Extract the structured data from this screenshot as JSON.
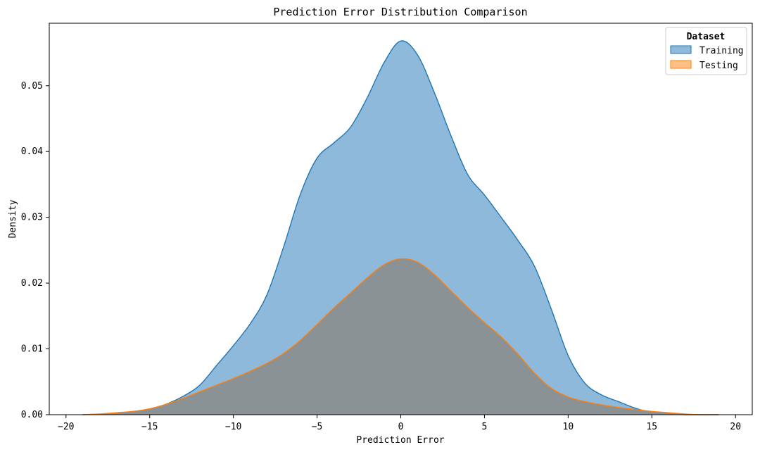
{
  "chart_data": {
    "type": "area",
    "title": "Prediction Error Distribution Comparison",
    "xlabel": "Prediction Error",
    "ylabel": "Density",
    "xlim": [
      -21,
      21
    ],
    "ylim": [
      0,
      0.0595
    ],
    "xticks": [
      -20,
      -15,
      -10,
      -5,
      0,
      5,
      10,
      15,
      20
    ],
    "yticks": [
      0.0,
      0.01,
      0.02,
      0.03,
      0.04,
      0.05
    ],
    "ytick_labels": [
      "0.00",
      "0.01",
      "0.02",
      "0.03",
      "0.04",
      "0.05"
    ],
    "grid": false,
    "legend": {
      "title": "Dataset",
      "placement": "top-right",
      "entries": [
        "Training",
        "Testing"
      ]
    },
    "series": [
      {
        "name": "Training",
        "color": "#1f77b4",
        "fill_color": "#8eb9da",
        "x": [
          -19,
          -18,
          -17,
          -16,
          -15,
          -14,
          -13,
          -12,
          -11,
          -10,
          -9,
          -8,
          -7,
          -6,
          -5,
          -4,
          -3,
          -2,
          -1,
          0,
          1,
          2,
          3,
          4,
          5,
          6,
          7,
          8,
          9,
          10,
          11,
          12,
          13,
          14,
          15,
          16,
          17,
          18,
          19
        ],
        "y": [
          0.0,
          0.0001,
          0.0002,
          0.0004,
          0.0008,
          0.0016,
          0.0028,
          0.0045,
          0.0075,
          0.0105,
          0.0138,
          0.0182,
          0.0255,
          0.0335,
          0.039,
          0.0413,
          0.0437,
          0.0482,
          0.0535,
          0.0568,
          0.0547,
          0.049,
          0.0424,
          0.0365,
          0.0334,
          0.03,
          0.0265,
          0.0225,
          0.016,
          0.009,
          0.0048,
          0.003,
          0.002,
          0.001,
          0.0003,
          0.0001,
          0.0,
          0.0,
          0.0
        ]
      },
      {
        "name": "Testing",
        "color": "#ff7f0e",
        "fill_color": "#8a9296",
        "x": [
          -19,
          -18,
          -17,
          -16,
          -15,
          -14,
          -13,
          -12,
          -11,
          -10,
          -9,
          -8,
          -7,
          -6,
          -5,
          -4,
          -3,
          -2,
          -1,
          0,
          1,
          2,
          3,
          4,
          5,
          6,
          7,
          8,
          9,
          10,
          11,
          12,
          13,
          14,
          15,
          16,
          17,
          18,
          19
        ],
        "y": [
          0.0,
          0.0001,
          0.0003,
          0.0005,
          0.0009,
          0.0016,
          0.0025,
          0.0035,
          0.0045,
          0.0055,
          0.0066,
          0.0078,
          0.0093,
          0.0113,
          0.0137,
          0.0162,
          0.0185,
          0.0208,
          0.0228,
          0.0237,
          0.0232,
          0.0213,
          0.0188,
          0.0163,
          0.014,
          0.0118,
          0.0092,
          0.0063,
          0.004,
          0.0027,
          0.002,
          0.0015,
          0.0011,
          0.0008,
          0.0005,
          0.0003,
          0.0001,
          0.0,
          0.0
        ]
      }
    ]
  }
}
